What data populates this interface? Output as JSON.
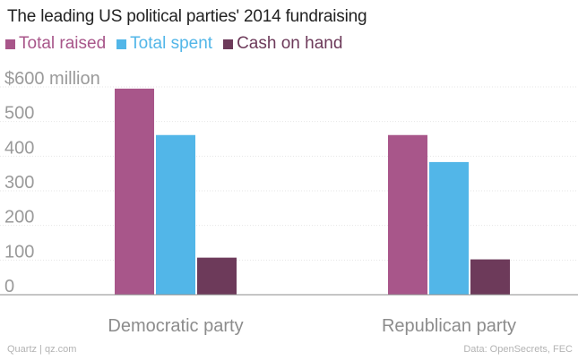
{
  "title": "The leading US political parties' 2014 fundraising",
  "footer": {
    "source_left": "Quartz | qz.com",
    "source_right": "Data: OpenSecrets, FEC"
  },
  "chart_data": {
    "type": "bar",
    "title": "The leading US political parties' 2014 fundraising",
    "categories": [
      "Democratic party",
      "Republican party"
    ],
    "series": [
      {
        "name": "Total raised",
        "color": "#a8568a",
        "values": [
          595,
          461
        ]
      },
      {
        "name": "Total spent",
        "color": "#52b6e8",
        "values": [
          461,
          383
        ]
      },
      {
        "name": "Cash on hand",
        "color": "#6d3a5a",
        "values": [
          107,
          102
        ]
      }
    ],
    "ylim": [
      0,
      600
    ],
    "yticks": [
      0,
      100,
      200,
      300,
      400,
      500,
      600
    ],
    "ytick_labels": [
      "0",
      "100",
      "200",
      "300",
      "400",
      "500",
      "$600 million"
    ],
    "xlabel": "",
    "ylabel": "",
    "grid": true,
    "legend": "top-left"
  }
}
